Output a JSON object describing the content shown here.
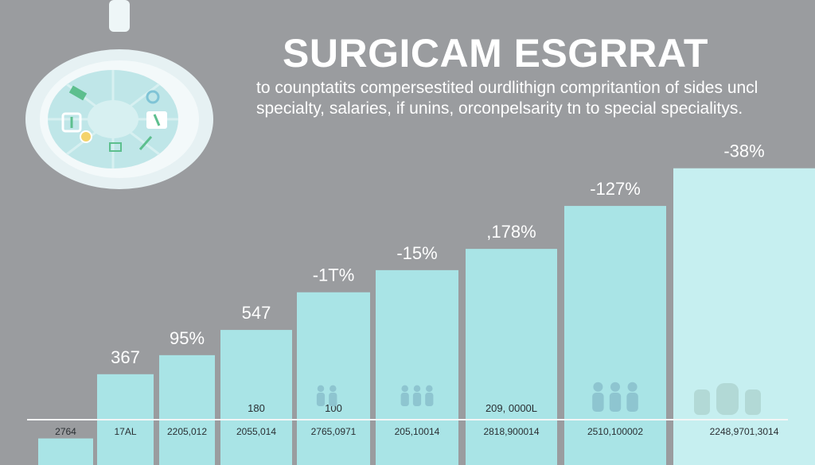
{
  "header": {
    "title": "SURGICAM ESGRRAT",
    "subtitle_lines": [
      "to counptatits compersestited ourdlithign compritantion of sides uncl",
      "specialty, salaries, if unins, orconpelsarity tn to special specialitys."
    ]
  },
  "colors": {
    "background": "#9a9c9f",
    "bar": "#a9e4e6",
    "bar_last": "#c6eff0",
    "text": "#ffffff",
    "baseline": "#f4f6f6",
    "people": "#8ec5d0",
    "icon_lamp": "#e8f3f4"
  },
  "icons": [
    "surgical-lamp-icon",
    "people-group-icon",
    "hands-group-icon"
  ],
  "chart_data": {
    "type": "bar",
    "categories": [
      "2764",
      "17AL",
      "2205,012",
      "2055,014",
      "2765,0971",
      "205,10014",
      "2818,900014",
      "2510,100002",
      "2248,9701,3014"
    ],
    "values": [
      60,
      205,
      248,
      305,
      390,
      440,
      488,
      585,
      670
    ],
    "value_labels": [
      "",
      "367",
      "95%",
      "547",
      "-1T%",
      "-15%",
      ",178%",
      "-127%",
      "-38%"
    ],
    "inner_labels": [
      "",
      "",
      "",
      "180",
      "100",
      "",
      "209, 0000L",
      "",
      ""
    ],
    "people_icons": [
      0,
      0,
      0,
      0,
      2,
      3,
      0,
      3,
      3
    ],
    "ylim": [
      0,
      700
    ],
    "grid": false,
    "legend": "none"
  }
}
